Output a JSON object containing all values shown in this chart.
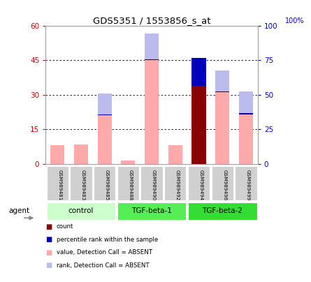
{
  "title": "GDS5351 / 1553856_s_at",
  "samples": [
    "GSM989481",
    "GSM989483",
    "GSM989485",
    "GSM989488",
    "GSM989490",
    "GSM989492",
    "GSM989494",
    "GSM989496",
    "GSM989499"
  ],
  "pink_bars": [
    8.0,
    8.5,
    21.0,
    1.5,
    45.0,
    8.0,
    0.0,
    31.0,
    21.5
  ],
  "lavender_bars": [
    0.0,
    0.0,
    9.5,
    0.0,
    11.5,
    0.0,
    0.0,
    9.5,
    10.0
  ],
  "red_bars": [
    0.0,
    0.0,
    0.0,
    0.0,
    0.0,
    0.0,
    34.0,
    0.0,
    0.0
  ],
  "blue_bars": [
    0.0,
    0.0,
    0.0,
    0.0,
    0.0,
    0.0,
    12.0,
    0.0,
    0.0
  ],
  "small_blue": [
    0.0,
    0.0,
    0.5,
    0.0,
    0.5,
    0.0,
    0.0,
    0.5,
    0.5
  ],
  "ylim_left": [
    0,
    60
  ],
  "ylim_right": [
    0,
    100
  ],
  "yticks_left": [
    0,
    15,
    30,
    45,
    60
  ],
  "yticks_right": [
    0,
    25,
    50,
    75,
    100
  ],
  "color_pink": "#ffaaaa",
  "color_lavender": "#bbbbee",
  "color_red": "#880000",
  "color_blue": "#0000bb",
  "color_left_axis": "#cc0000",
  "color_right_axis": "#0000cc",
  "bg_color": "#ffffff",
  "bar_width": 0.6,
  "groups": [
    {
      "name": "control",
      "start": 0,
      "end": 2,
      "color": "#ccffcc"
    },
    {
      "name": "TGF-beta-1",
      "start": 3,
      "end": 5,
      "color": "#55ee55"
    },
    {
      "name": "TGF-beta-2",
      "start": 6,
      "end": 8,
      "color": "#33dd33"
    }
  ],
  "legend_items": [
    {
      "color": "#880000",
      "label": "count"
    },
    {
      "color": "#0000bb",
      "label": "percentile rank within the sample"
    },
    {
      "color": "#ffaaaa",
      "label": "value, Detection Call = ABSENT"
    },
    {
      "color": "#bbbbee",
      "label": "rank, Detection Call = ABSENT"
    }
  ]
}
